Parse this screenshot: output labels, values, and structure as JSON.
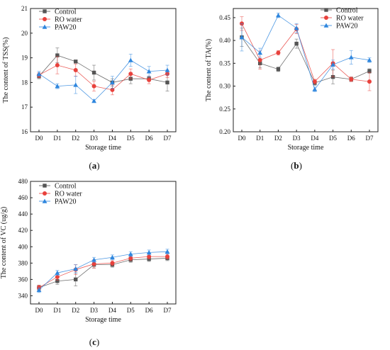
{
  "chart_data": [
    {
      "type": "line",
      "panel_label": "(a)",
      "categories": [
        "D0",
        "D1",
        "D2",
        "D3",
        "D4",
        "D5",
        "D6",
        "D7"
      ],
      "xlabel": "Storage time",
      "ylabel": "The content of TSS(%)",
      "ylim": [
        16,
        21
      ],
      "yticks": [
        "16",
        "17",
        "18",
        "19",
        "20",
        "21"
      ],
      "legend_position": "top-left",
      "series": [
        {
          "name": "Control",
          "color": "#555555",
          "marker": "square",
          "values": [
            18.25,
            19.1,
            18.85,
            18.4,
            18.0,
            18.15,
            18.15,
            18.0
          ],
          "errors": [
            0.1,
            0.3,
            0.05,
            0.3,
            0.15,
            0.2,
            0.1,
            0.35
          ]
        },
        {
          "name": "RO water",
          "color": "#e8413c",
          "marker": "circle",
          "values": [
            18.3,
            18.7,
            18.5,
            17.85,
            17.7,
            18.35,
            18.1,
            18.35
          ],
          "errors": [
            0.1,
            0.35,
            0.25,
            0.2,
            0.2,
            0.2,
            0.15,
            0.15
          ]
        },
        {
          "name": "PAW20",
          "color": "#2e86de",
          "marker": "triangle",
          "values": [
            18.35,
            17.85,
            17.9,
            17.25,
            18.0,
            18.9,
            18.45,
            18.5
          ],
          "errors": [
            0.1,
            0.1,
            0.35,
            0.05,
            0.25,
            0.25,
            0.2,
            0.2
          ]
        }
      ]
    },
    {
      "type": "line",
      "panel_label": "(b)",
      "categories": [
        "D0",
        "D1",
        "D2",
        "D3",
        "D4",
        "D5",
        "D6",
        "D7"
      ],
      "xlabel": "Storage time",
      "ylabel": "The content of TA(%)",
      "ylim": [
        0.2,
        0.47
      ],
      "yticks": [
        "0.20",
        "0.25",
        "0.30",
        "0.35",
        "0.40",
        "0.45"
      ],
      "legend_position": "top-right",
      "series": [
        {
          "name": "Control",
          "color": "#555555",
          "marker": "square",
          "values": [
            0.407,
            0.35,
            0.337,
            0.393,
            0.307,
            0.32,
            0.315,
            0.333
          ],
          "errors": [
            0.02,
            0.01,
            0.005,
            0.01,
            0.005,
            0.015,
            0.005,
            0.005
          ]
        },
        {
          "name": "RO water",
          "color": "#e8413c",
          "marker": "circle",
          "values": [
            0.437,
            0.357,
            0.373,
            0.425,
            0.31,
            0.35,
            0.315,
            0.31
          ],
          "errors": [
            0.015,
            0.02,
            0.005,
            0.01,
            0.005,
            0.03,
            0.005,
            0.02
          ]
        },
        {
          "name": "PAW20",
          "color": "#2e86de",
          "marker": "triangle",
          "values": [
            0.407,
            0.373,
            0.455,
            0.427,
            0.293,
            0.347,
            0.363,
            0.357
          ],
          "errors": [
            0.03,
            0.01,
            0.005,
            0.01,
            0.005,
            0.01,
            0.015,
            0.005
          ]
        }
      ]
    },
    {
      "type": "line",
      "panel_label": "(c)",
      "categories": [
        "D0",
        "D1",
        "D2",
        "D3",
        "D4",
        "D5",
        "D6",
        "D7"
      ],
      "xlabel": "Storage time",
      "ylabel": "The content of VC (ug/g)",
      "ylim": [
        330,
        480
      ],
      "yticks": [
        "340",
        "360",
        "380",
        "400",
        "420",
        "440",
        "460",
        "480"
      ],
      "legend_position": "top-left",
      "series": [
        {
          "name": "Control",
          "color": "#555555",
          "marker": "square",
          "values": [
            350,
            358,
            360,
            378,
            378,
            384,
            385,
            386
          ],
          "errors": [
            3,
            4,
            8,
            4,
            3,
            3,
            3,
            3
          ]
        },
        {
          "name": "RO water",
          "color": "#e8413c",
          "marker": "circle",
          "values": [
            350,
            363,
            372,
            379,
            380,
            386,
            388,
            388
          ],
          "errors": [
            3,
            4,
            6,
            5,
            3,
            3,
            3,
            3
          ]
        },
        {
          "name": "PAW20",
          "color": "#2e86de",
          "marker": "triangle",
          "values": [
            347,
            368,
            373,
            384,
            387,
            391,
            393,
            394
          ],
          "errors": [
            3,
            3,
            5,
            3,
            3,
            3,
            3,
            3
          ]
        }
      ]
    }
  ]
}
